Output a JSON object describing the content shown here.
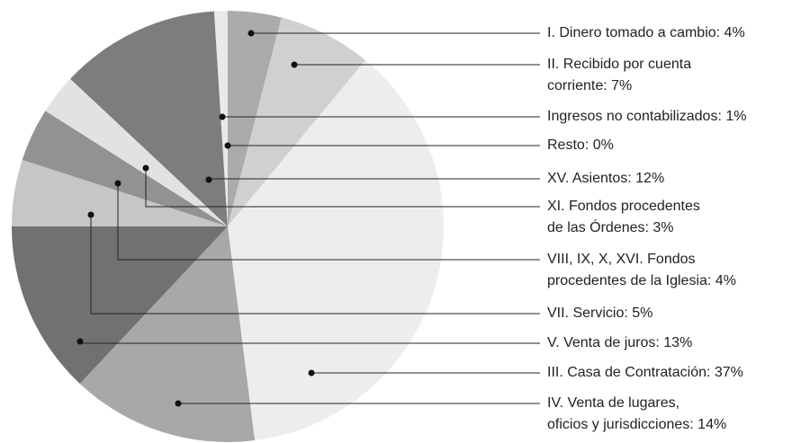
{
  "chart_data": {
    "type": "pie",
    "categories": [
      "I. Dinero tomado a cambio: 4%",
      "II. Recibido por cuenta\ncorriente: 7%",
      "III. Casa de Contratación: 37%",
      "IV. Venta de lugares,\noficios y jurisdicciones: 14%",
      "V. Venta de juros: 13%",
      "VII. Servicio: 5%",
      "VIII, IX, X, XVI. Fondos\nprocedentes de la Iglesia: 4%",
      "XI. Fondos procedentes\nde las Órdenes: 3%",
      "XV. Asientos: 12%",
      "Ingresos no contabilizados: 1%",
      "Resto: 0%"
    ],
    "values": [
      4,
      7,
      37,
      14,
      13,
      5,
      4,
      3,
      12,
      1,
      0
    ],
    "colors": [
      "#ababab",
      "#d0d0d0",
      "#ededed",
      "#a8a8a8",
      "#717171",
      "#c6c6c6",
      "#929292",
      "#e2e2e2",
      "#7d7d7d",
      "#e9e9e9",
      "#ffffff"
    ]
  }
}
